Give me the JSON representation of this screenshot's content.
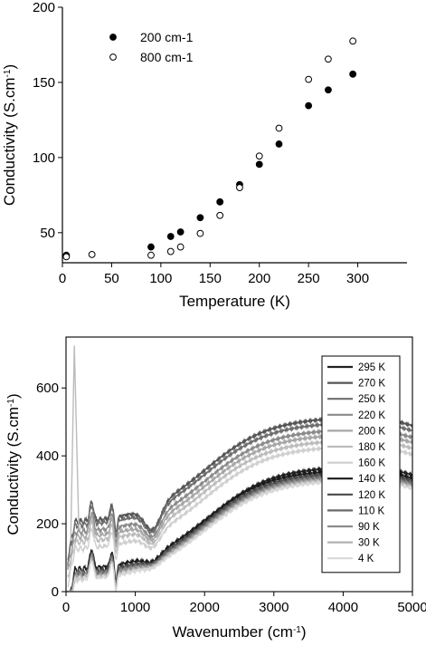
{
  "chart_data": [
    {
      "type": "scatter",
      "title": "",
      "xlabel": "Temperature (K)",
      "ylabel": "Conductivity (S.cm",
      "ylabel_sup": "-1",
      "ylabel_close": ")",
      "xlim": [
        0,
        350
      ],
      "ylim": [
        30,
        200
      ],
      "xticks": [
        "0",
        "50",
        "100",
        "150",
        "200",
        "250",
        "300"
      ],
      "xtick_values": [
        0,
        50,
        100,
        150,
        200,
        250,
        300
      ],
      "yticks": [
        "50",
        "100",
        "150",
        "200"
      ],
      "ytick_values": [
        50,
        100,
        150,
        200
      ],
      "grid": false,
      "legend_position": "top-left",
      "series": [
        {
          "name": "200 cm-1",
          "marker": "filled-circle",
          "x": [
            4,
            90,
            110,
            120,
            140,
            160,
            180,
            200,
            220,
            250,
            270,
            295
          ],
          "y": [
            35,
            40.5,
            47.5,
            50.5,
            60,
            70.5,
            82,
            95.5,
            109,
            134.5,
            145,
            155.5
          ]
        },
        {
          "name": "800 cm-1",
          "marker": "open-circle",
          "x": [
            4,
            30,
            90,
            110,
            120,
            140,
            160,
            180,
            200,
            220,
            250,
            270,
            295
          ],
          "y": [
            34,
            35.5,
            35,
            37.5,
            40.5,
            49.5,
            61.5,
            80,
            101,
            119.5,
            152,
            165.5,
            177.5
          ]
        }
      ]
    },
    {
      "type": "line",
      "title": "",
      "xlabel": "Wavenumber (cm",
      "xlabel_sup": "-1",
      "xlabel_close": ")",
      "ylabel": "Conductivity (S.cm",
      "ylabel_sup": "-1",
      "ylabel_close": ")",
      "xlim": [
        0,
        5000
      ],
      "ylim": [
        0,
        750
      ],
      "xticks": [
        "0",
        "1000",
        "2000",
        "3000",
        "4000",
        "5000"
      ],
      "xtick_values": [
        0,
        1000,
        2000,
        3000,
        4000,
        5000
      ],
      "yticks": [
        "0",
        "200",
        "400",
        "600"
      ],
      "ytick_values": [
        0,
        200,
        400,
        600
      ],
      "grid": false,
      "legend_position": "right",
      "series": [
        {
          "name": "295 K",
          "color": "#222222",
          "plateau": 370,
          "base": 40
        },
        {
          "name": "270 K",
          "color": "#555555",
          "plateau": 515,
          "base": 200
        },
        {
          "name": "250 K",
          "color": "#6e6e6e",
          "plateau": 500,
          "base": 190
        },
        {
          "name": "220 K",
          "color": "#8a8a8a",
          "plateau": 480,
          "base": 170
        },
        {
          "name": "200 K",
          "color": "#a6a6a6",
          "plateau": 465,
          "base": 155
        },
        {
          "name": "180 K",
          "color": "#bcbcbc",
          "plateau": 448,
          "base": 140
        },
        {
          "name": "160 K",
          "color": "#cfcfcf",
          "plateau": 430,
          "base": 120
        },
        {
          "name": "140 K",
          "color": "#1a1a1a",
          "plateau": 360,
          "base": 60
        },
        {
          "name": "120 K",
          "color": "#4a4a4a",
          "plateau": 352,
          "base": 50
        },
        {
          "name": "110 K",
          "color": "#6a6a6a",
          "plateau": 345,
          "base": 45
        },
        {
          "name": "90 K",
          "color": "#8c8c8c",
          "plateau": 340,
          "base": 40
        },
        {
          "name": "30 K",
          "color": "#b0b0b0",
          "plateau": 335,
          "base": 35
        },
        {
          "name": "4 K",
          "color": "#d8d8d8",
          "plateau": 330,
          "base": 30
        }
      ]
    }
  ]
}
